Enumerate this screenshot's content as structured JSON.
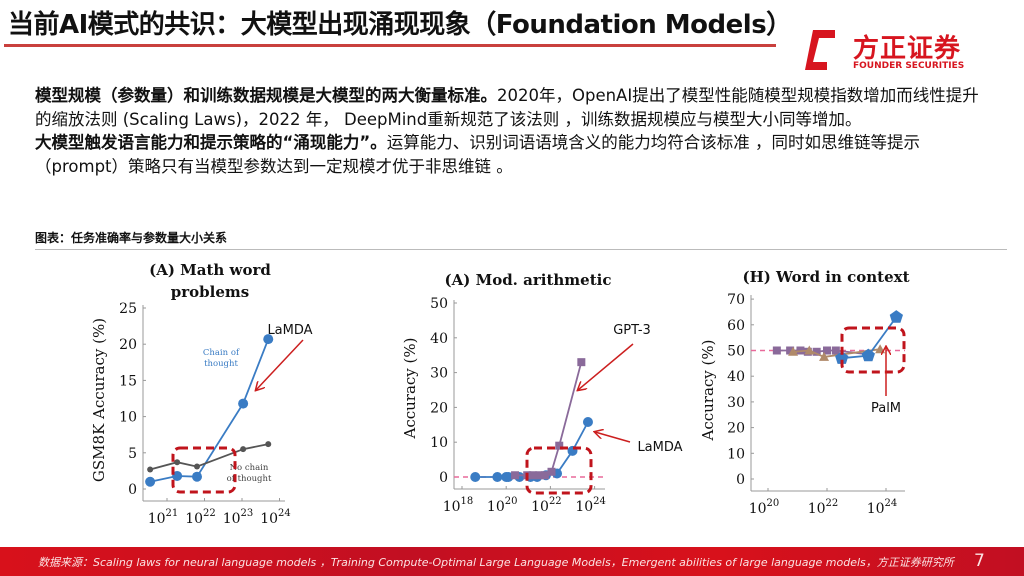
{
  "header": {
    "title": "当前AI模式的共识：大模型出现涌现现象（Foundation Models）"
  },
  "logo": {
    "cn": "方正证券",
    "en": "FOUNDER SECURITIES"
  },
  "body": {
    "p1_bold": "模型规模（参数量）和训练数据规模是大模型的两大衡量标准。",
    "p1_text": "2020年，OpenAI提出了模型性能随模型规模指数增加而线性提升的缩放法则 (Scaling  Laws)，2022 年， DeepMind重新规范了该法则 ，训练数据规模应与模型大小同等增加。",
    "p2_bold": "大模型触发语言能力和提示策略的“涌现能力”。",
    "p2_text": "运算能力、识别词语语境含义的能力均符合该标准 ，同时如思维链等提示（prompt）策略只有当模型参数达到一定规模才优于非思维链 。"
  },
  "caption": "图表：任务准确率与参数量大小关系",
  "colors": {
    "accent": "#d7151f",
    "blue": "#3a7cc4",
    "gray": "#555555",
    "purple": "#8a6a9a",
    "tan": "#b08a6a",
    "pink": "#e86a9a",
    "annotation": "#cc1f1f"
  },
  "chart_data": [
    {
      "type": "line",
      "title": [
        "(A) Math word",
        "problems"
      ],
      "ylabel": "GSM8K Accuracy (%)",
      "xscale": "log",
      "ylim": [
        0,
        25
      ],
      "yticks": [
        "0",
        "5",
        "10",
        "15",
        "20",
        "25"
      ],
      "xticks": [
        {
          "base": "10",
          "exp": "21"
        },
        {
          "base": "10",
          "exp": "22"
        },
        {
          "base": "10",
          "exp": "23"
        },
        {
          "base": "10",
          "exp": "24"
        }
      ],
      "series": [
        {
          "name": "Chain of thought",
          "label_lines": [
            "Chain of",
            "thought"
          ],
          "color": "#3a7cc4",
          "marker": "circle",
          "x_log10": [
            20.55,
            21.27,
            21.8,
            23.03,
            23.7
          ],
          "y": [
            1.0,
            1.8,
            1.7,
            11.8,
            20.7
          ]
        },
        {
          "name": "No chain of thought",
          "label_lines": [
            "No chain",
            "of thought"
          ],
          "color": "#555555",
          "marker": "dot",
          "x_log10": [
            20.55,
            21.27,
            21.8,
            23.03,
            23.7
          ],
          "y": [
            2.7,
            3.7,
            3.1,
            5.5,
            6.2
          ]
        }
      ],
      "annotations": [
        {
          "text": "LaMDA"
        }
      ]
    },
    {
      "type": "line",
      "title": [
        "(A) Mod. arithmetic"
      ],
      "ylabel": "Accuracy (%)",
      "xscale": "log",
      "ylim": [
        0,
        50
      ],
      "yticks": [
        "0",
        "10",
        "20",
        "30",
        "40",
        "50"
      ],
      "xticks": [
        {
          "base": "10",
          "exp": "18"
        },
        {
          "base": "10",
          "exp": "20"
        },
        {
          "base": "10",
          "exp": "22"
        },
        {
          "base": "10",
          "exp": "24"
        }
      ],
      "baseline": 0,
      "series": [
        {
          "name": "LaMDA",
          "color": "#3a7cc4",
          "marker": "circle",
          "x_log10": [
            18.6,
            19.6,
            20.0,
            20.1,
            20.6,
            21.1,
            21.4,
            21.8,
            22.3,
            23.0,
            23.7
          ],
          "y": [
            0,
            0,
            0,
            0,
            0,
            0,
            0,
            0.5,
            1,
            7.5,
            15.8
          ]
        },
        {
          "name": "GPT-3",
          "color": "#8a6a9a",
          "marker": "square",
          "x_log10": [
            20.4,
            20.95,
            21.2,
            21.5,
            21.75,
            22.05,
            22.4,
            23.4
          ],
          "y": [
            0.5,
            0.5,
            0.5,
            0.5,
            0.5,
            1.5,
            9,
            33
          ]
        }
      ],
      "annotations": [
        {
          "text": "GPT-3"
        },
        {
          "text": "LaMDA"
        }
      ]
    },
    {
      "type": "line",
      "title": [
        "(H) Word in context"
      ],
      "ylabel": "Accuracy (%)",
      "xscale": "log",
      "ylim": [
        0,
        70
      ],
      "yticks": [
        "0",
        "10",
        "20",
        "30",
        "40",
        "50",
        "60",
        "70"
      ],
      "xticks": [
        {
          "base": "10",
          "exp": "20"
        },
        {
          "base": "10",
          "exp": "22"
        },
        {
          "base": "10",
          "exp": "24"
        }
      ],
      "baseline": 50,
      "series": [
        {
          "color": "#8a6a9a",
          "marker": "square",
          "x_log10": [
            20.3,
            20.75,
            21.1,
            21.35,
            21.65,
            22.0,
            22.3,
            23.4
          ],
          "y": [
            50,
            50,
            50,
            49.5,
            49.5,
            50,
            50,
            48.5
          ]
        },
        {
          "color": "#b08a6a",
          "marker": "triangle",
          "x_log10": [
            20.85,
            21.4,
            21.9,
            23.8
          ],
          "y": [
            49.5,
            50,
            47.5,
            50.5
          ]
        },
        {
          "name": "PalM",
          "color": "#3a7cc4",
          "marker": "pentagon",
          "x_log10": [
            22.5,
            23.4,
            24.35
          ],
          "y": [
            47,
            48,
            63
          ]
        }
      ],
      "annotations": [
        {
          "text": "PalM"
        }
      ]
    }
  ],
  "footer": {
    "source": "数据来源：Scaling laws for neural language models ，Training Compute-Optimal Large Language Models，Emergent abilities of large language models，方正证券研究所",
    "page": "7"
  }
}
